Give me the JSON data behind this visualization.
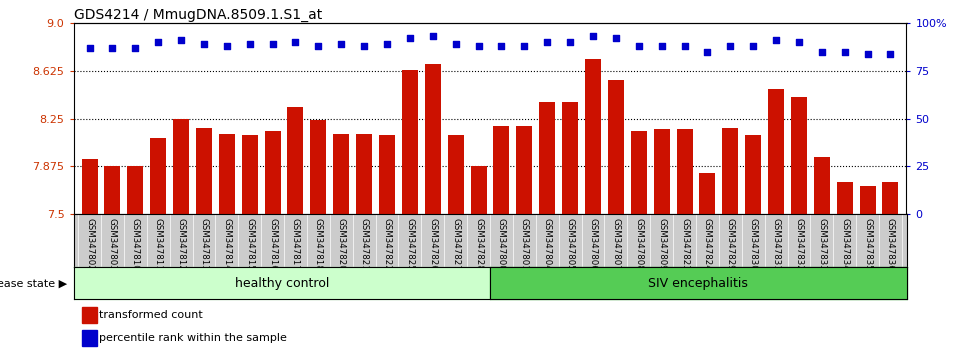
{
  "title": "GDS4214 / MmugDNA.8509.1.S1_at",
  "samples": [
    "GSM347802",
    "GSM347803",
    "GSM347810",
    "GSM347811",
    "GSM347812",
    "GSM347813",
    "GSM347814",
    "GSM347815",
    "GSM347816",
    "GSM347817",
    "GSM347818",
    "GSM347820",
    "GSM347821",
    "GSM347822",
    "GSM347825",
    "GSM347826",
    "GSM347827",
    "GSM347828",
    "GSM347800",
    "GSM347801",
    "GSM347804",
    "GSM347805",
    "GSM347806",
    "GSM347807",
    "GSM347808",
    "GSM347809",
    "GSM347823",
    "GSM347824",
    "GSM347829",
    "GSM347830",
    "GSM347831",
    "GSM347832",
    "GSM347833",
    "GSM347834",
    "GSM347835",
    "GSM347836"
  ],
  "bar_values": [
    7.93,
    7.88,
    7.88,
    8.1,
    8.25,
    8.18,
    8.13,
    8.12,
    8.15,
    8.34,
    8.24,
    8.13,
    8.13,
    8.12,
    8.63,
    8.68,
    8.12,
    7.88,
    8.19,
    8.19,
    8.38,
    8.38,
    8.72,
    8.55,
    8.15,
    8.17,
    8.17,
    7.82,
    8.18,
    8.12,
    8.48,
    8.42,
    7.95,
    7.75,
    7.72,
    7.75
  ],
  "percentile_values": [
    87,
    87,
    87,
    90,
    91,
    89,
    88,
    89,
    89,
    90,
    88,
    89,
    88,
    89,
    92,
    93,
    89,
    88,
    88,
    88,
    90,
    90,
    93,
    92,
    88,
    88,
    88,
    85,
    88,
    88,
    91,
    90,
    85,
    85,
    84,
    84
  ],
  "healthy_count": 18,
  "siv_count": 18,
  "bar_color": "#cc1100",
  "dot_color": "#0000cc",
  "ylim_left": [
    7.5,
    9.0
  ],
  "yticks_left": [
    7.5,
    7.875,
    8.25,
    8.625,
    9.0
  ],
  "ylim_right": [
    0,
    100
  ],
  "yticks_right": [
    0,
    25,
    50,
    75,
    100
  ],
  "hline_values": [
    7.875,
    8.25,
    8.625
  ],
  "bg_color": "#ffffff",
  "tick_label_color_left": "#cc3300",
  "tick_label_color_right": "#0000cc",
  "healthy_label": "healthy control",
  "siv_label": "SIV encephalitis",
  "disease_label": "disease state",
  "legend_bar_label": "transformed count",
  "legend_dot_label": "percentile rank within the sample",
  "healthy_bg": "#ccffcc",
  "siv_bg": "#55cc55",
  "sample_label_bg": "#cccccc",
  "title_fontsize": 10
}
